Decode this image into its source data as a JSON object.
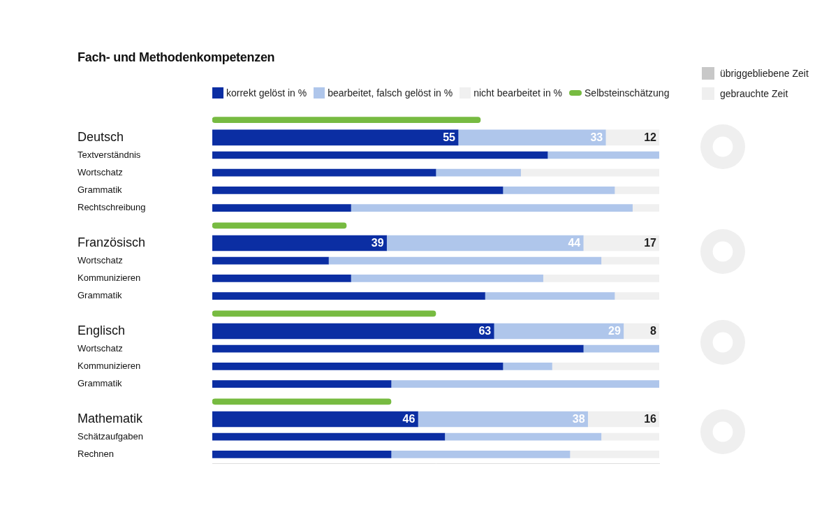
{
  "chart_data": [
    {
      "type": "bar",
      "orientation": "horizontal",
      "stacked": true,
      "title": "Fach- und Methodenkompetenzen",
      "categories": [
        null,
        "Deutsch",
        "Textverständnis",
        "Wortschatz",
        "Grammatik",
        "Rechtschreibung",
        null,
        "Französisch",
        "Wortschatz",
        "Kommunizieren",
        "Grammatik",
        null,
        "Englisch",
        "Wortschatz",
        "Kommunizieren",
        "Grammatik",
        null,
        "Mathematik",
        "Schätzaufgaben",
        "Rechnen"
      ],
      "series": [
        {
          "name": "korrekt gelöst in %",
          "color": "#0b2ea3",
          "values": [
            null,
            55,
            75,
            50,
            65,
            31,
            null,
            39,
            26,
            31,
            61,
            null,
            63,
            83,
            65,
            40,
            null,
            46,
            52,
            40
          ],
          "value_labels": [
            null,
            "55",
            null,
            null,
            null,
            null,
            null,
            "39",
            null,
            null,
            null,
            null,
            "63",
            null,
            null,
            null,
            null,
            "46",
            null,
            null
          ]
        },
        {
          "name": "bearbeitet, falsch gelöst in %",
          "color": "#afc6eb",
          "values": [
            null,
            33,
            25,
            19,
            25,
            63,
            null,
            44,
            61,
            43,
            29,
            null,
            29,
            17,
            11,
            60,
            null,
            38,
            35,
            40
          ],
          "value_labels": [
            null,
            "33",
            null,
            null,
            null,
            null,
            null,
            "44",
            null,
            null,
            null,
            null,
            "29",
            null,
            null,
            null,
            null,
            "38",
            null,
            null
          ]
        },
        {
          "name": "nicht bearbeitet in %",
          "color": "#f0f0f0",
          "values": [
            null,
            12,
            0,
            31,
            10,
            6,
            null,
            17,
            13,
            26,
            10,
            null,
            8,
            0,
            24,
            0,
            null,
            16,
            13,
            20
          ],
          "value_labels": [
            null,
            "12",
            null,
            null,
            null,
            null,
            null,
            "17",
            null,
            null,
            null,
            null,
            "8",
            null,
            null,
            null,
            null,
            "16",
            null,
            null
          ]
        },
        {
          "name": "Selbsteinschätzung",
          "color": "#77bb41",
          "values": [
            60,
            null,
            null,
            null,
            null,
            null,
            30,
            null,
            null,
            null,
            null,
            50,
            null,
            null,
            null,
            null,
            40,
            null,
            null,
            null
          ]
        }
      ],
      "xlim": [
        0,
        100
      ],
      "grid": false,
      "tick_labels": "y",
      "data_labels": true,
      "legend": "top"
    },
    {
      "type": "doughnut",
      "categories": [
        "übriggebliebene Zeit",
        "gebrauchte Zeit"
      ],
      "colors": [
        "#c8c8c8",
        "#efefef"
      ],
      "series": [
        {
          "values": [
            0,
            100
          ]
        },
        {
          "values": [
            0,
            100
          ]
        },
        {
          "values": [
            0,
            100
          ]
        },
        {
          "values": [
            0,
            100
          ]
        }
      ],
      "legend": "top-right"
    }
  ]
}
